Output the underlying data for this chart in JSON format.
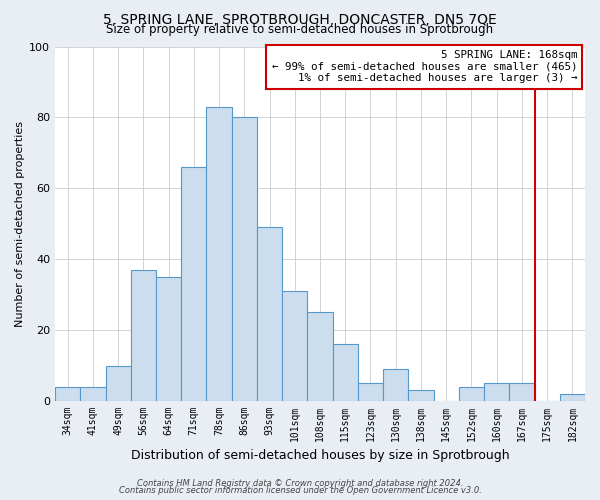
{
  "title": "5, SPRING LANE, SPROTBROUGH, DONCASTER, DN5 7QE",
  "subtitle": "Size of property relative to semi-detached houses in Sprotbrough",
  "xlabel": "Distribution of semi-detached houses by size in Sprotbrough",
  "ylabel": "Number of semi-detached properties",
  "bar_labels": [
    "34sqm",
    "41sqm",
    "49sqm",
    "56sqm",
    "64sqm",
    "71sqm",
    "78sqm",
    "86sqm",
    "93sqm",
    "101sqm",
    "108sqm",
    "115sqm",
    "123sqm",
    "130sqm",
    "138sqm",
    "145sqm",
    "152sqm",
    "160sqm",
    "167sqm",
    "175sqm",
    "182sqm"
  ],
  "bar_values": [
    4,
    4,
    10,
    37,
    35,
    66,
    83,
    80,
    49,
    31,
    25,
    16,
    5,
    9,
    3,
    0,
    4,
    5,
    5,
    0,
    2
  ],
  "bar_color": "#ccdded",
  "bar_edge_color": "#5599cc",
  "ylim": [
    0,
    100
  ],
  "yticks": [
    0,
    20,
    40,
    60,
    80,
    100
  ],
  "marker_line_index": 18,
  "marker_line_color": "#cc0000",
  "annotation_title": "5 SPRING LANE: 168sqm",
  "annotation_line1": "← 99% of semi-detached houses are smaller (465)",
  "annotation_line2": "1% of semi-detached houses are larger (3) →",
  "annotation_box_color": "#cc0000",
  "footer_line1": "Contains HM Land Registry data © Crown copyright and database right 2024.",
  "footer_line2": "Contains public sector information licensed under the Open Government Licence v3.0.",
  "bg_color": "#e8eef4",
  "plot_bg_color": "#ffffff",
  "grid_color": "#cccccc"
}
